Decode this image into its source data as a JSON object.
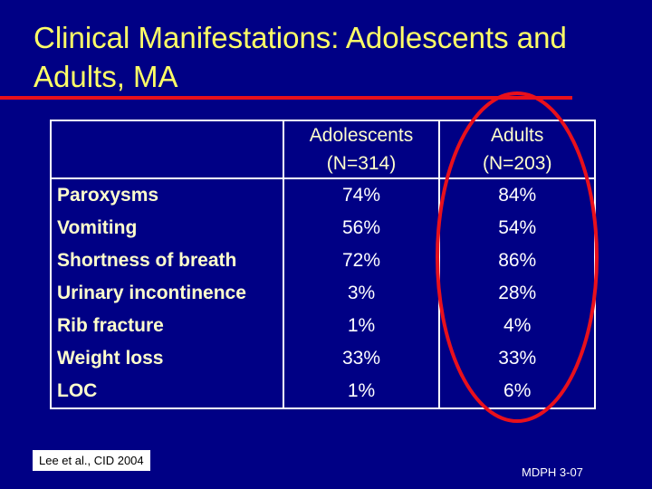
{
  "title": "Clinical Manifestations: Adolescents and Adults, MA",
  "table": {
    "headers": [
      {
        "line1": "Adolescents",
        "line2": "(N=314)"
      },
      {
        "line1": "Adults",
        "line2": "(N=203)"
      }
    ],
    "rows": [
      {
        "label": "Paroxysms",
        "adolescents": "74%",
        "adults": "84%"
      },
      {
        "label": "Vomiting",
        "adolescents": "56%",
        "adults": "54%"
      },
      {
        "label": "Shortness of breath",
        "adolescents": "72%",
        "adults": "86%"
      },
      {
        "label": "Urinary incontinence",
        "adolescents": "3%",
        "adults": "28%"
      },
      {
        "label": "Rib fracture",
        "adolescents": "1%",
        "adults": "4%"
      },
      {
        "label": "Weight loss",
        "adolescents": "33%",
        "adults": "33%"
      },
      {
        "label": "LOC",
        "adolescents": "1%",
        "adults": "6%"
      }
    ]
  },
  "citation": "Lee et al., CID 2004",
  "footer": "MDPH 3-07",
  "colors": {
    "background": "#000085",
    "title": "#ffff66",
    "accent": "#e8101c"
  }
}
